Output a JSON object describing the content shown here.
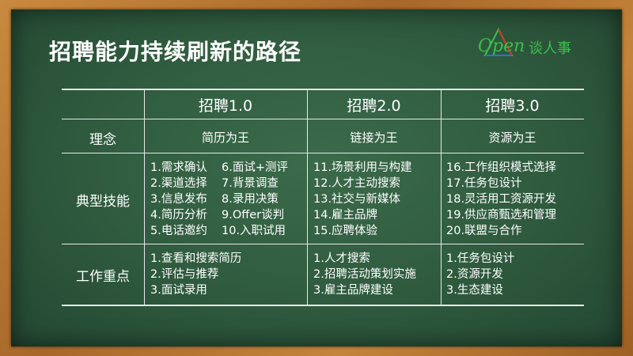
{
  "title": "招聘能力持续刷新的路径",
  "logo": {
    "text": "Open",
    "cn": "谈人事"
  },
  "columns": [
    "招聘1.0",
    "招聘2.0",
    "招聘3.0"
  ],
  "rows": {
    "concept": {
      "label": "理念",
      "values": [
        "简历为王",
        "链接为王",
        "资源为王"
      ]
    },
    "skills": {
      "label": "典型技能",
      "col1_left": [
        "1.需求确认",
        "2.渠道选择",
        "3.信息发布",
        "4.简历分析",
        "5.电话邀约"
      ],
      "col1_right": [
        "6.面试+测评",
        "7.背景调查",
        "8.录用决策",
        "9.Offer谈判",
        "10.入职试用"
      ],
      "col2": [
        "11.场景利用与构建",
        "12.人才主动搜索",
        "13.社交与新媒体",
        "14.雇主品牌",
        "15.应聘体验"
      ],
      "col3": [
        "16.工作组织模式选择",
        "17.任务包设计",
        "18.灵活用工资源开发",
        "19.供应商甄选和管理",
        "20.联盟与合作"
      ]
    },
    "focus": {
      "label": "工作重点",
      "col1": [
        "1.查看和搜索简历",
        "2.评估与推荐",
        "3.面试录用"
      ],
      "col2": [
        "1.人才搜索",
        "2.招聘活动策划实施",
        "3.雇主品牌建设"
      ],
      "col3": [
        "1.任务包设计",
        "2.资源开发",
        "3.生态建设"
      ]
    }
  },
  "colors": {
    "board": "#2f5a3e",
    "frame": "#b8772f",
    "text": "#ffffff",
    "logo": "#3cbf4a"
  }
}
